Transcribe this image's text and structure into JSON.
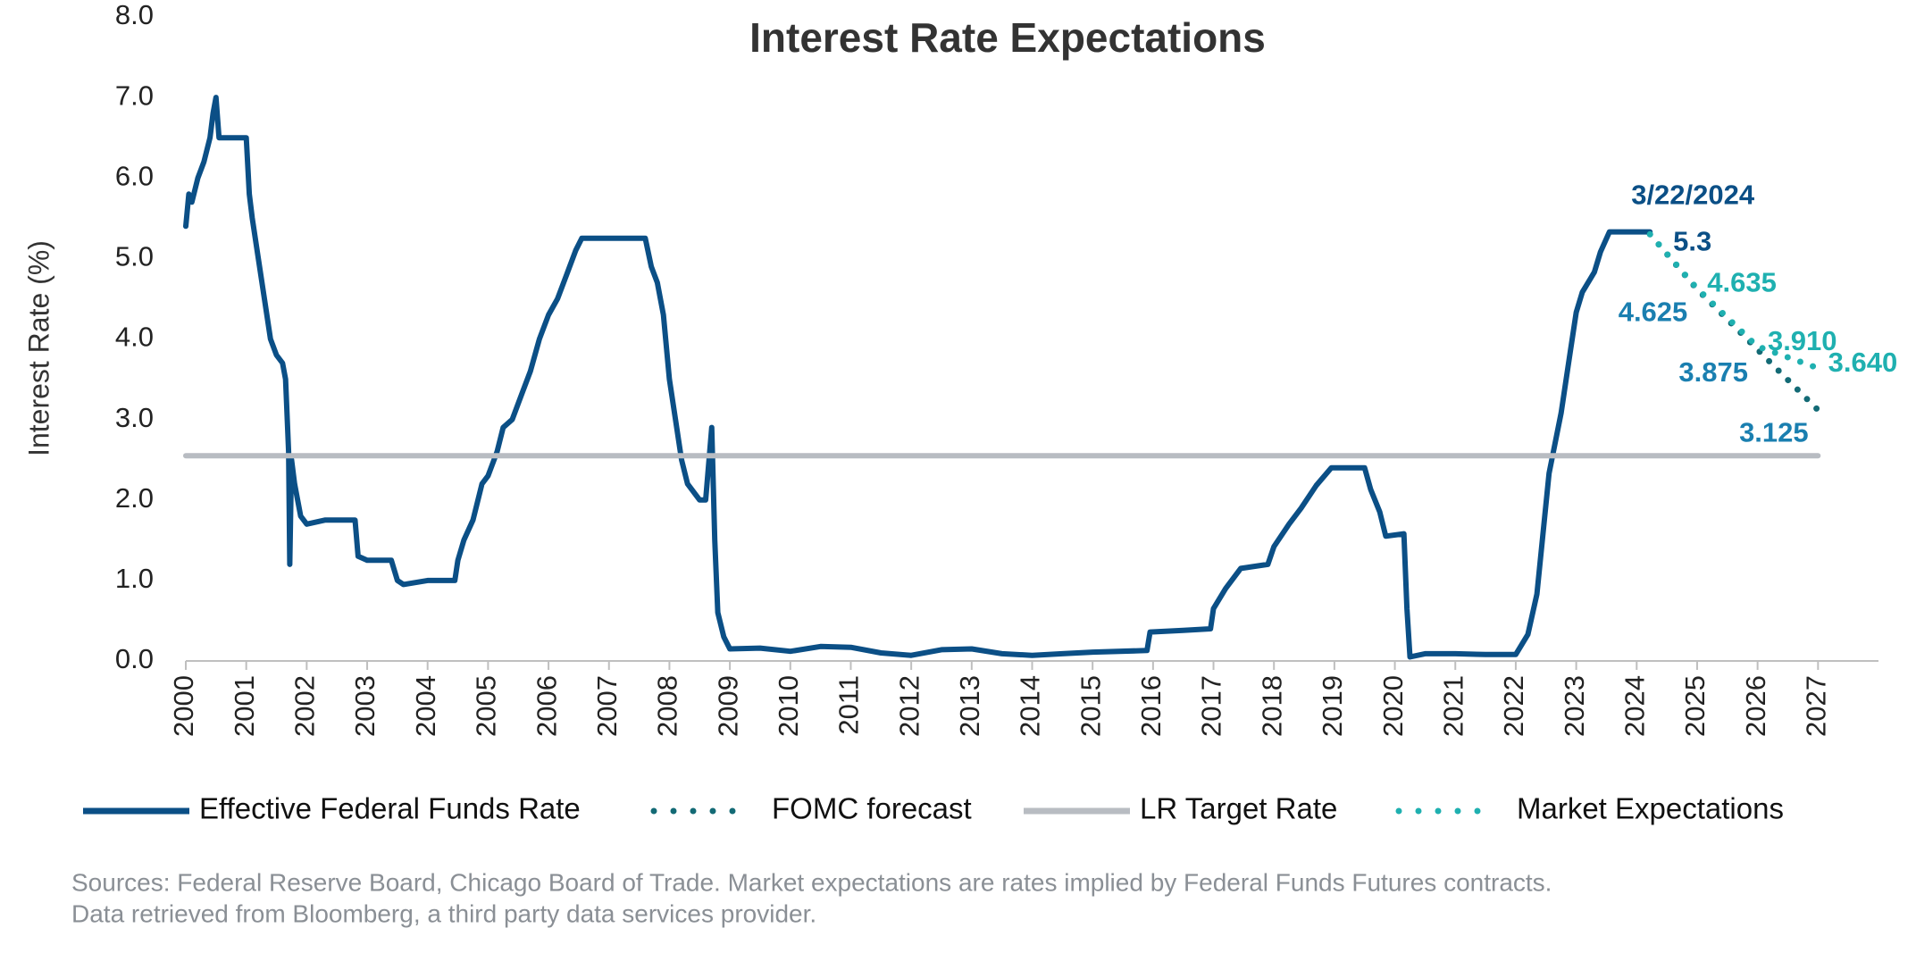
{
  "chart_data": {
    "type": "line",
    "title": "Interest Rate Expectations",
    "y_label": "Interest Rate (%)",
    "xlim": [
      2000,
      2028
    ],
    "xticks": [
      2000,
      2001,
      2002,
      2003,
      2004,
      2005,
      2006,
      2007,
      2008,
      2009,
      2010,
      2011,
      2012,
      2013,
      2014,
      2015,
      2016,
      2017,
      2018,
      2019,
      2020,
      2021,
      2022,
      2023,
      2024,
      2025,
      2026,
      2027
    ],
    "ylim": [
      0,
      8
    ],
    "yticks": [
      {
        "value": 0,
        "label": "0.0"
      },
      {
        "value": 1,
        "label": "1.0"
      },
      {
        "value": 2,
        "label": "2.0"
      },
      {
        "value": 3,
        "label": "3.0"
      },
      {
        "value": 4,
        "label": "4.0"
      },
      {
        "value": 5,
        "label": "5.0"
      },
      {
        "value": 6,
        "label": "6.0"
      },
      {
        "value": 7,
        "label": "7.0"
      },
      {
        "value": 8,
        "label": "8.0"
      }
    ],
    "grid": false,
    "legend": "bottom",
    "annotations": [
      {
        "text": "3/22/2024",
        "x": 2024.22,
        "y": 5.3
      }
    ],
    "series": [
      {
        "name": "Effective Federal Funds Rate",
        "color": "#0b4f86",
        "style": "solid",
        "x": [
          2000.0,
          2000.05,
          2000.1,
          2000.2,
          2000.3,
          2000.4,
          2000.45,
          2000.5,
          2000.55,
          2000.7,
          2000.9,
          2001.0,
          2001.05,
          2001.1,
          2001.2,
          2001.3,
          2001.4,
          2001.5,
          2001.6,
          2001.65,
          2001.7,
          2001.72,
          2001.75,
          2001.8,
          2001.9,
          2002.0,
          2002.3,
          2002.6,
          2002.8,
          2002.85,
          2003.0,
          2003.4,
          2003.5,
          2003.6,
          2004.0,
          2004.45,
          2004.5,
          2004.6,
          2004.75,
          2004.9,
          2005.0,
          2005.15,
          2005.25,
          2005.4,
          2005.55,
          2005.7,
          2005.85,
          2006.0,
          2006.15,
          2006.3,
          2006.45,
          2006.55,
          2007.0,
          2007.6,
          2007.7,
          2007.8,
          2007.9,
          2008.0,
          2008.1,
          2008.2,
          2008.3,
          2008.5,
          2008.6,
          2008.7,
          2008.75,
          2008.8,
          2008.9,
          2009.0,
          2009.5,
          2010.0,
          2010.5,
          2011.0,
          2011.5,
          2012.0,
          2012.5,
          2013.0,
          2013.5,
          2014.0,
          2014.5,
          2015.0,
          2015.9,
          2015.95,
          2016.5,
          2016.95,
          2017.0,
          2017.2,
          2017.45,
          2017.9,
          2018.0,
          2018.25,
          2018.45,
          2018.7,
          2018.95,
          2019.5,
          2019.6,
          2019.75,
          2019.85,
          2020.15,
          2020.2,
          2020.25,
          2020.5,
          2021.0,
          2021.5,
          2022.0,
          2022.2,
          2022.35,
          2022.45,
          2022.55,
          2022.75,
          2022.9,
          2023.0,
          2023.1,
          2023.3,
          2023.4,
          2023.55,
          2024.22
        ],
        "values": [
          5.4,
          5.8,
          5.7,
          6.0,
          6.2,
          6.5,
          6.8,
          7.0,
          6.5,
          6.5,
          6.5,
          6.5,
          5.8,
          5.5,
          5.0,
          4.5,
          4.0,
          3.8,
          3.7,
          3.5,
          2.6,
          1.2,
          2.5,
          2.2,
          1.8,
          1.7,
          1.75,
          1.75,
          1.75,
          1.3,
          1.25,
          1.25,
          1.0,
          0.95,
          1.0,
          1.0,
          1.25,
          1.5,
          1.75,
          2.2,
          2.3,
          2.6,
          2.9,
          3.0,
          3.3,
          3.6,
          4.0,
          4.3,
          4.5,
          4.8,
          5.1,
          5.25,
          5.25,
          5.25,
          4.9,
          4.7,
          4.3,
          3.5,
          3.0,
          2.5,
          2.2,
          2.0,
          2.0,
          2.9,
          1.5,
          0.6,
          0.3,
          0.15,
          0.16,
          0.12,
          0.18,
          0.17,
          0.1,
          0.07,
          0.14,
          0.15,
          0.09,
          0.07,
          0.09,
          0.11,
          0.13,
          0.36,
          0.38,
          0.4,
          0.65,
          0.9,
          1.15,
          1.2,
          1.42,
          1.7,
          1.9,
          2.18,
          2.4,
          2.4,
          2.13,
          1.85,
          1.55,
          1.58,
          0.65,
          0.05,
          0.09,
          0.09,
          0.08,
          0.08,
          0.33,
          0.83,
          1.58,
          2.33,
          3.08,
          3.83,
          4.33,
          4.58,
          4.83,
          5.08,
          5.33,
          5.33
        ]
      },
      {
        "name": "FOMC forecast",
        "color": "#136a75",
        "label_color": "#1a7fb0",
        "style": "dotted",
        "x": [
          2024.22,
          2024.99,
          2025.99,
          2026.99
        ],
        "values": [
          5.3,
          4.625,
          3.875,
          3.125
        ]
      },
      {
        "name": "LR Target Rate",
        "color": "#b8bcc2",
        "style": "solid",
        "x": [
          2000,
          2027
        ],
        "values": [
          2.55,
          2.55
        ]
      },
      {
        "name": "Market Expectations",
        "color": "#1fb0b0",
        "label_color": "#1fb0b0",
        "style": "dotted",
        "x": [
          2024.22,
          2024.99,
          2025.99,
          2026.99
        ],
        "values": [
          5.3,
          4.635,
          3.91,
          3.64
        ],
        "value_labels": [
          null,
          "4.635",
          "3.910",
          "3.640"
        ]
      }
    ],
    "footnote": [
      "Sources: Federal Reserve Board, Chicago Board of Trade. Market expectations are rates implied by Federal Funds Futures contracts.",
      "Data retrieved from Bloomberg, a third party data services provider."
    ]
  }
}
